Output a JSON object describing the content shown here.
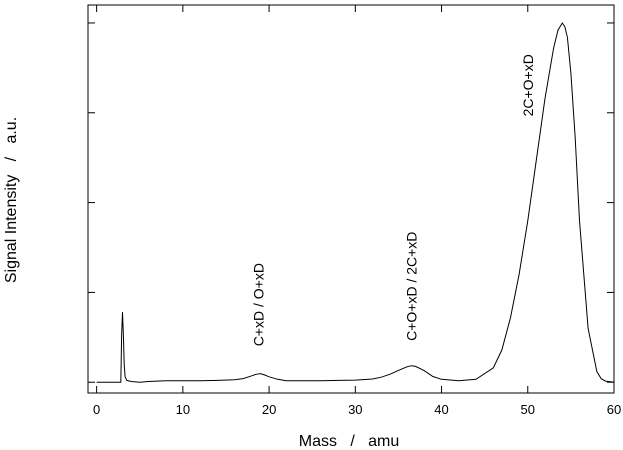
{
  "chart_data": {
    "type": "line",
    "title": "",
    "xlabel": "Mass   /   amu",
    "ylabel": "Signal Intensity   /   a.u.",
    "xlim": [
      -1,
      60
    ],
    "ylim": [
      -0.03,
      1.05
    ],
    "xticks": [
      0,
      10,
      20,
      30,
      40,
      50,
      60
    ],
    "xtick_labels": [
      "0",
      "10",
      "20",
      "30",
      "40",
      "50",
      "60"
    ],
    "yticks": [
      0,
      0.25,
      0.5,
      0.75,
      1.0
    ],
    "grid": false,
    "legend": "none",
    "series": [
      {
        "color": "#000000",
        "x": [
          0,
          2.8,
          2.85,
          2.9,
          3.0,
          3.1,
          3.2,
          3.3,
          3.5,
          4,
          5,
          6,
          8,
          10,
          12,
          14,
          16,
          17,
          18,
          18.5,
          19,
          19.5,
          20,
          21,
          22,
          24,
          26,
          28,
          30,
          32,
          33,
          34,
          35,
          36,
          36.5,
          37,
          38,
          39,
          40,
          42,
          44,
          46,
          47,
          48,
          49,
          50,
          51,
          52,
          53,
          53.5,
          54,
          54.3,
          54.6,
          55,
          55.5,
          56,
          57,
          58,
          58.5,
          59,
          60
        ],
        "y": [
          0.0,
          0.0,
          0.06,
          0.13,
          0.195,
          0.13,
          0.05,
          0.015,
          0.005,
          0.002,
          0.0,
          0.002,
          0.004,
          0.004,
          0.004,
          0.005,
          0.007,
          0.01,
          0.018,
          0.022,
          0.024,
          0.02,
          0.015,
          0.008,
          0.004,
          0.004,
          0.004,
          0.005,
          0.006,
          0.009,
          0.014,
          0.022,
          0.033,
          0.043,
          0.046,
          0.044,
          0.032,
          0.016,
          0.008,
          0.004,
          0.008,
          0.04,
          0.09,
          0.18,
          0.3,
          0.45,
          0.62,
          0.79,
          0.93,
          0.98,
          1.0,
          0.99,
          0.96,
          0.86,
          0.68,
          0.45,
          0.15,
          0.03,
          0.01,
          0.003,
          0.0
        ]
      }
    ],
    "annotations": [
      {
        "text": "C+xD / O+xD",
        "x": 18.8,
        "y": 0.1
      },
      {
        "text": "C+O+xD / 2C+xD",
        "x": 36.5,
        "y": 0.115
      },
      {
        "text": "2C+O+xD",
        "x": 50.0,
        "y": 0.74
      }
    ]
  }
}
